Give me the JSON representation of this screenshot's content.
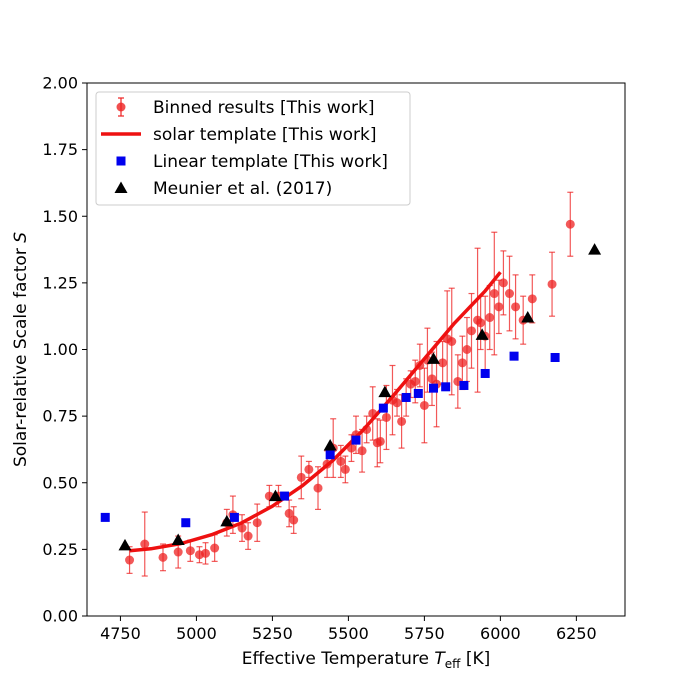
{
  "chart_data": {
    "type": "scatter",
    "xlabel_main": "Effective Temperature ",
    "xlabel_sym": "T",
    "xlabel_sub": "eff",
    "xlabel_unit": " [K]",
    "ylabel_main": "Solar-relative Scale factor ",
    "ylabel_sym": "S",
    "xlim": [
      4640,
      6410
    ],
    "ylim": [
      0.0,
      2.0
    ],
    "xticks": [
      4750,
      5000,
      5250,
      5500,
      5750,
      6000,
      6250
    ],
    "yticks": [
      0.0,
      0.25,
      0.5,
      0.75,
      1.0,
      1.25,
      1.5,
      1.75,
      2.0
    ],
    "ytick_labels": [
      "0.00",
      "0.25",
      "0.50",
      "0.75",
      "1.00",
      "1.25",
      "1.50",
      "1.75",
      "2.00"
    ],
    "legend": [
      {
        "label": "Binned results [This work]",
        "marker": "circle-errorbar",
        "color": "#ee2222"
      },
      {
        "label": "solar template [This work]",
        "marker": "line",
        "color": "#ee1111"
      },
      {
        "label": "Linear template [This work]",
        "marker": "square",
        "color": "#0000ee"
      },
      {
        "label": "Meunier et al. (2017)",
        "marker": "triangle",
        "color": "#000000"
      }
    ],
    "series": [
      {
        "name": "Binned results [This work]",
        "color": "#ee2222",
        "points": [
          [
            4780,
            0.21,
            0.05
          ],
          [
            4830,
            0.27,
            0.12
          ],
          [
            4890,
            0.22,
            0.05
          ],
          [
            4940,
            0.24,
            0.06
          ],
          [
            4980,
            0.245,
            0.04
          ],
          [
            5010,
            0.23,
            0.03
          ],
          [
            5030,
            0.235,
            0.04
          ],
          [
            5060,
            0.255,
            0.05
          ],
          [
            5100,
            0.35,
            0.05
          ],
          [
            5120,
            0.38,
            0.07
          ],
          [
            5150,
            0.33,
            0.05
          ],
          [
            5170,
            0.3,
            0.05
          ],
          [
            5200,
            0.35,
            0.07
          ],
          [
            5240,
            0.45,
            0.04
          ],
          [
            5270,
            0.45,
            0.04
          ],
          [
            5305,
            0.385,
            0.05
          ],
          [
            5320,
            0.36,
            0.05
          ],
          [
            5345,
            0.52,
            0.08
          ],
          [
            5370,
            0.55,
            0.03
          ],
          [
            5400,
            0.48,
            0.08
          ],
          [
            5430,
            0.57,
            0.05
          ],
          [
            5450,
            0.63,
            0.11
          ],
          [
            5475,
            0.58,
            0.06
          ],
          [
            5490,
            0.55,
            0.05
          ],
          [
            5510,
            0.63,
            0.05
          ],
          [
            5525,
            0.68,
            0.07
          ],
          [
            5545,
            0.62,
            0.08
          ],
          [
            5560,
            0.7,
            0.05
          ],
          [
            5580,
            0.76,
            0.1
          ],
          [
            5595,
            0.65,
            0.09
          ],
          [
            5605,
            0.655,
            0.08
          ],
          [
            5625,
            0.745,
            0.12
          ],
          [
            5645,
            0.81,
            0.13
          ],
          [
            5660,
            0.8,
            0.05
          ],
          [
            5675,
            0.73,
            0.1
          ],
          [
            5690,
            0.82,
            0.07
          ],
          [
            5705,
            0.87,
            0.05
          ],
          [
            5720,
            0.88,
            0.08
          ],
          [
            5735,
            0.94,
            0.08
          ],
          [
            5750,
            0.79,
            0.14
          ],
          [
            5760,
            0.96,
            0.12
          ],
          [
            5775,
            0.89,
            0.1
          ],
          [
            5790,
            0.87,
            0.16
          ],
          [
            5810,
            0.95,
            0.08
          ],
          [
            5825,
            1.04,
            0.18
          ],
          [
            5840,
            1.03,
            0.2
          ],
          [
            5860,
            0.88,
            0.1
          ],
          [
            5875,
            0.95,
            0.1
          ],
          [
            5890,
            1.0,
            0.12
          ],
          [
            5905,
            1.07,
            0.14
          ],
          [
            5925,
            1.11,
            0.27
          ],
          [
            5935,
            1.1,
            0.1
          ],
          [
            5950,
            1.05,
            0.15
          ],
          [
            5965,
            1.12,
            0.12
          ],
          [
            5980,
            1.21,
            0.23
          ],
          [
            5995,
            1.16,
            0.1
          ],
          [
            6010,
            1.25,
            0.12
          ],
          [
            6030,
            1.21,
            0.14
          ],
          [
            6050,
            1.16,
            0.12
          ],
          [
            6075,
            1.11,
            0.09
          ],
          [
            6105,
            1.19,
            0.09
          ],
          [
            6170,
            1.245,
            0.12
          ],
          [
            6230,
            1.47,
            0.12
          ]
        ]
      },
      {
        "name": "solar template [This work]",
        "color": "#ee1111",
        "points": [
          [
            4780,
            0.245
          ],
          [
            4850,
            0.252
          ],
          [
            4950,
            0.272
          ],
          [
            5050,
            0.305
          ],
          [
            5150,
            0.35
          ],
          [
            5250,
            0.412
          ],
          [
            5350,
            0.49
          ],
          [
            5450,
            0.585
          ],
          [
            5550,
            0.7
          ],
          [
            5650,
            0.83
          ],
          [
            5750,
            0.965
          ],
          [
            5850,
            1.1
          ],
          [
            5950,
            1.22
          ],
          [
            6000,
            1.29
          ]
        ]
      },
      {
        "name": "Linear template [This work]",
        "color": "#0000ee",
        "points": [
          [
            4700,
            0.37
          ],
          [
            4965,
            0.35
          ],
          [
            5125,
            0.37
          ],
          [
            5290,
            0.45
          ],
          [
            5440,
            0.605
          ],
          [
            5525,
            0.66
          ],
          [
            5615,
            0.78
          ],
          [
            5690,
            0.82
          ],
          [
            5730,
            0.835
          ],
          [
            5780,
            0.855
          ],
          [
            5820,
            0.86
          ],
          [
            5880,
            0.865
          ],
          [
            5950,
            0.91
          ],
          [
            6045,
            0.975
          ],
          [
            6180,
            0.97
          ]
        ]
      },
      {
        "name": "Meunier et al. (2017)",
        "color": "#000000",
        "points": [
          [
            4765,
            0.265
          ],
          [
            4940,
            0.285
          ],
          [
            5100,
            0.355
          ],
          [
            5260,
            0.45
          ],
          [
            5440,
            0.64
          ],
          [
            5620,
            0.84
          ],
          [
            5780,
            0.965
          ],
          [
            5940,
            1.055
          ],
          [
            6090,
            1.12
          ],
          [
            6310,
            1.375
          ]
        ]
      }
    ]
  }
}
